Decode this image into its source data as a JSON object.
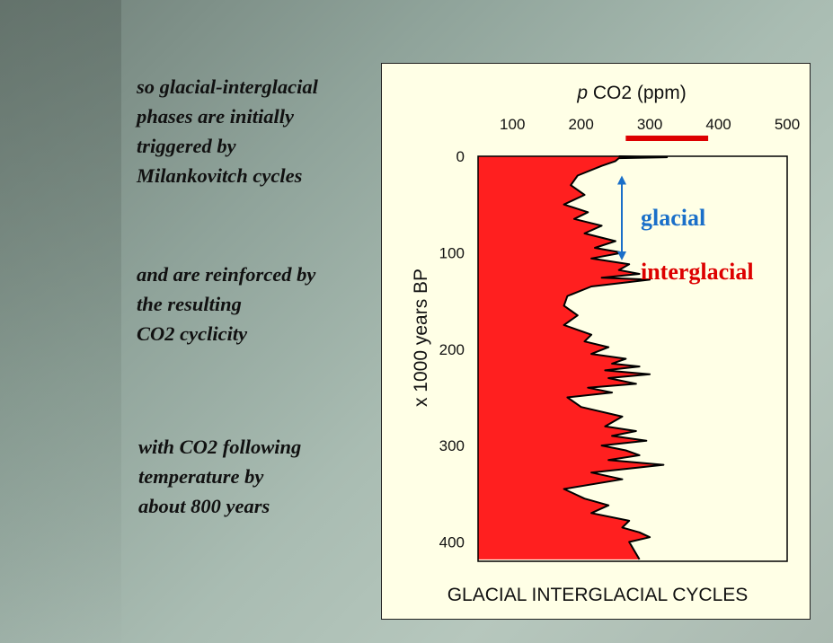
{
  "text_blocks": [
    {
      "lines": [
        "so glacial-interglacial",
        "phases are initially",
        "triggered by",
        "Milankovitch cycles"
      ]
    },
    {
      "lines": [
        "and are reinforced by",
        "the resulting",
        "CO2 cyclicity"
      ]
    },
    {
      "lines": [
        "with CO2 following",
        "temperature by",
        "about 800 years"
      ]
    }
  ],
  "chart_data": {
    "type": "area",
    "title": "",
    "caption": "GLACIAL INTERGLACIAL CYCLES",
    "xlabel_italic": "p",
    "xlabel": " CO2 (ppm)",
    "ylabel": "x 1000 years BP",
    "xlim": [
      50,
      500
    ],
    "ylim": [
      0,
      420
    ],
    "xticks": [
      100,
      200,
      300,
      400,
      500
    ],
    "yticks": [
      0,
      100,
      200,
      300,
      400
    ],
    "fill_color": "#ff1f1f",
    "line_color": "#000000",
    "modern_range_bar": {
      "from": 265,
      "to": 385,
      "color": "#dd0000"
    },
    "annotations": {
      "glacial": {
        "text": "glacial",
        "color": "#1a6fc9"
      },
      "interglacial": {
        "text": "interglacial",
        "color": "#dd0000"
      },
      "arrow": {
        "from_age": 20,
        "to_age": 108,
        "color": "#1a6fc9"
      }
    },
    "series": [
      {
        "x": [
          255,
          325,
          255,
          250,
          230,
          195,
          185,
          205,
          175,
          210,
          190,
          230,
          205,
          250,
          220,
          260,
          215,
          270,
          255,
          285,
          230,
          300,
          215,
          180,
          175,
          195,
          175,
          215,
          205,
          240,
          215,
          265,
          245,
          285,
          235,
          300,
          240,
          280,
          210,
          245,
          180,
          200,
          260,
          235,
          280,
          245,
          295,
          230,
          265,
          285,
          240,
          320,
          215,
          260,
          175,
          205,
          240,
          215,
          270,
          260,
          285,
          300,
          270,
          285
        ],
        "y": [
          0,
          1,
          2,
          5,
          10,
          20,
          30,
          40,
          50,
          58,
          65,
          72,
          80,
          88,
          95,
          100,
          106,
          112,
          118,
          122,
          126,
          128,
          135,
          145,
          155,
          165,
          175,
          185,
          192,
          198,
          205,
          210,
          215,
          218,
          222,
          226,
          230,
          236,
          240,
          245,
          250,
          260,
          270,
          280,
          285,
          290,
          295,
          300,
          305,
          310,
          315,
          320,
          328,
          335,
          345,
          355,
          362,
          370,
          378,
          385,
          390,
          395,
          400,
          418
        ]
      }
    ]
  }
}
